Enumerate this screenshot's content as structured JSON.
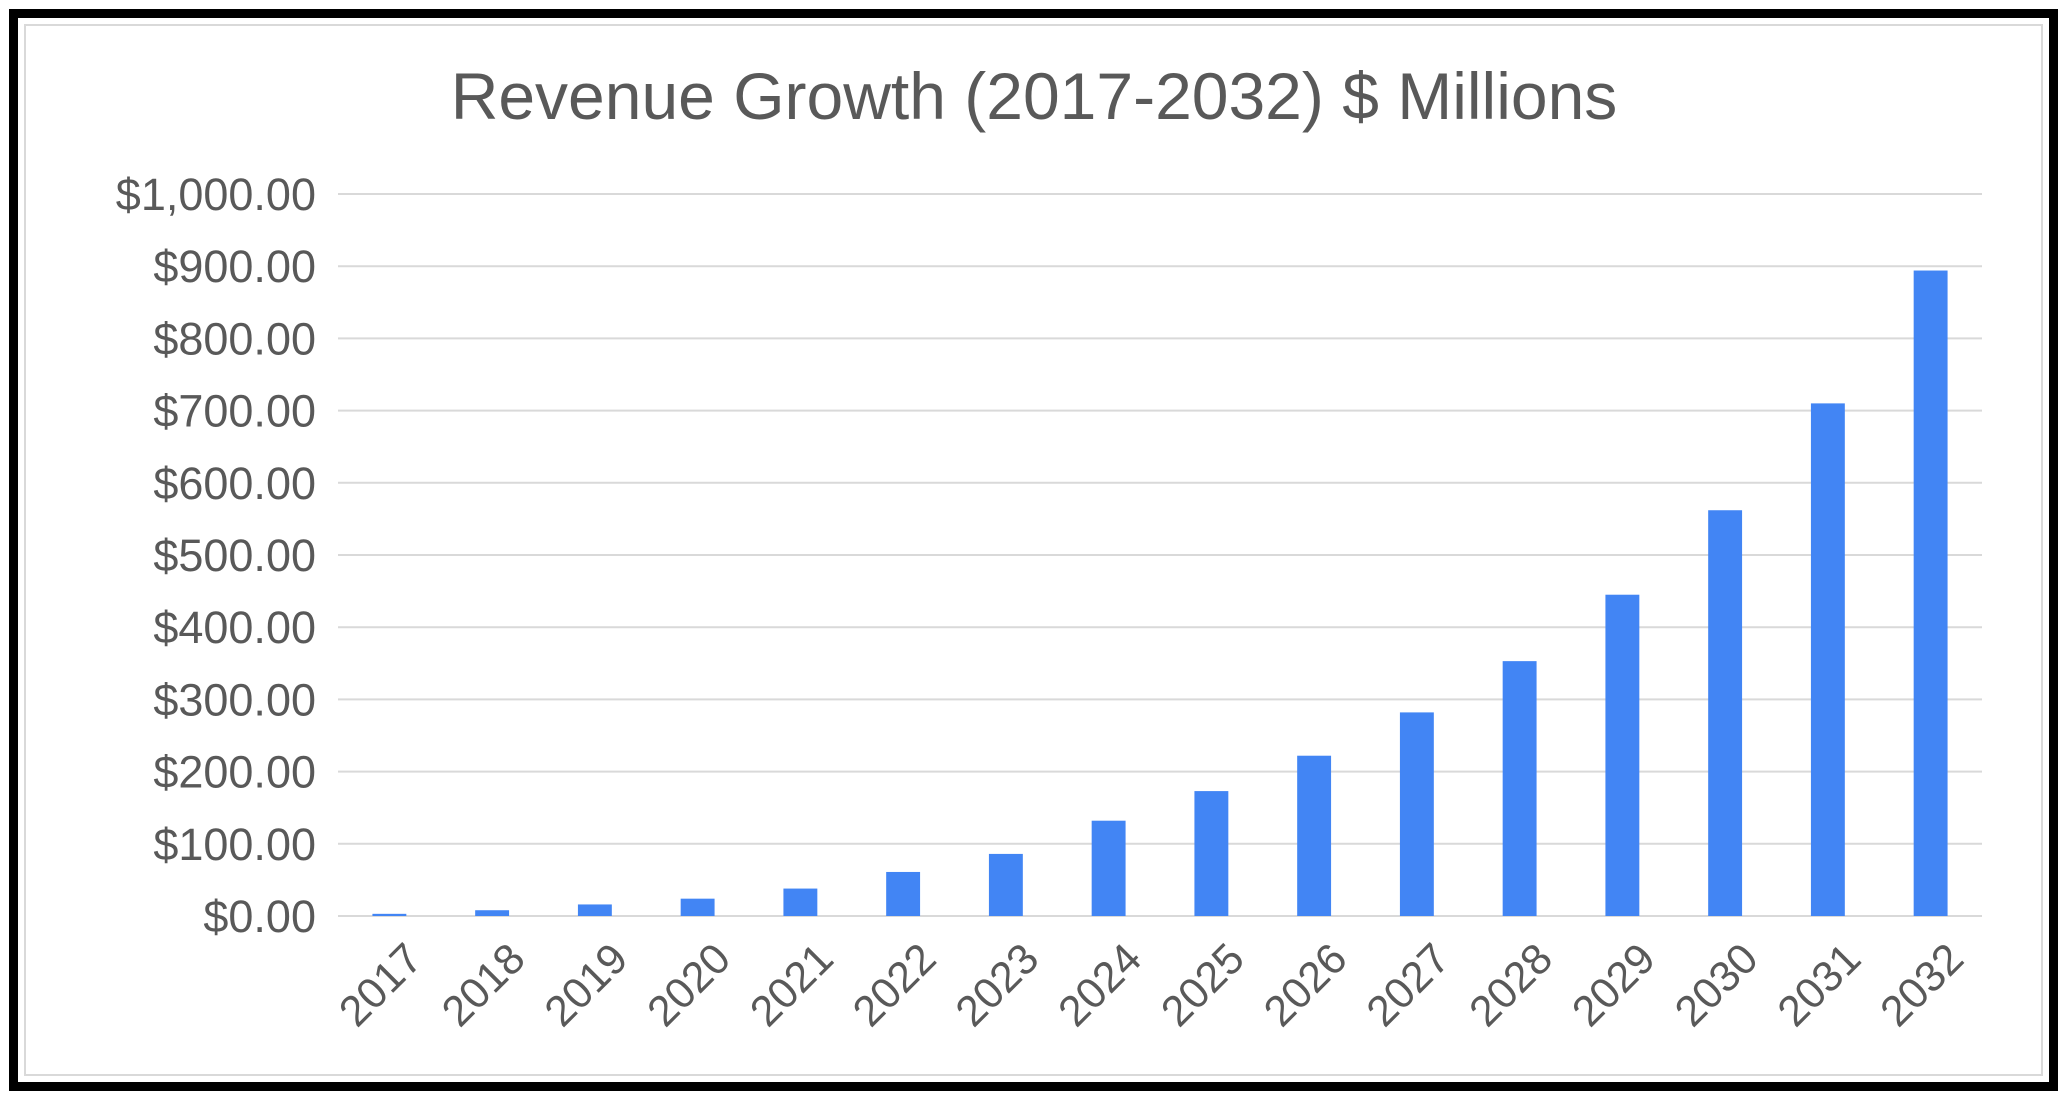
{
  "chart_data": {
    "type": "bar",
    "title": "Revenue Growth (2017-2032) $ Millions",
    "xlabel": "",
    "ylabel": "",
    "categories": [
      "2017",
      "2018",
      "2019",
      "2020",
      "2021",
      "2022",
      "2023",
      "2024",
      "2025",
      "2026",
      "2027",
      "2028",
      "2029",
      "2030",
      "2031",
      "2032"
    ],
    "values": [
      3,
      8,
      16,
      24,
      38,
      61,
      86,
      132,
      173,
      222,
      282,
      353,
      445,
      562,
      710,
      894
    ],
    "ylim": [
      0,
      1000
    ],
    "yticks": [
      0,
      100,
      200,
      300,
      400,
      500,
      600,
      700,
      800,
      900,
      1000
    ],
    "ytick_labels": [
      "$0.00",
      "$100.00",
      "$200.00",
      "$300.00",
      "$400.00",
      "$500.00",
      "$600.00",
      "$700.00",
      "$800.00",
      "$900.00",
      "$1,000.00"
    ],
    "grid": true,
    "legend": "none",
    "bar_color": "#4285f4"
  }
}
